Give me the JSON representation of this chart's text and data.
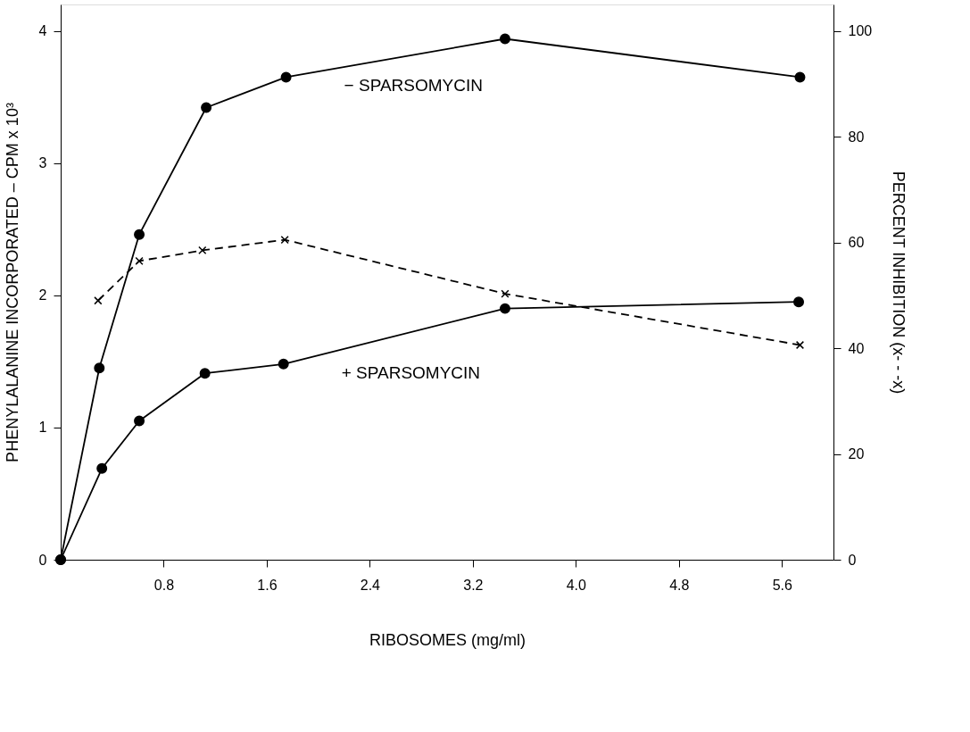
{
  "chart_data": {
    "type": "line",
    "xlabel": "RIBOSOMES  (mg/ml)",
    "ylabel": "PHENYLALANINE  INCORPORATED – CPM x 10³",
    "y2label": "PERCENT  INHIBITION  (x- - -x)",
    "xlim": [
      0,
      6
    ],
    "xticks": [
      0.8,
      1.6,
      2.4,
      3.2,
      {
        "value": 4.0,
        "label": "4.0"
      },
      4.8,
      5.6
    ],
    "ylim": [
      0,
      4.2
    ],
    "yticks": [
      0,
      1,
      2,
      3,
      4
    ],
    "y2lim": [
      0,
      105
    ],
    "y2ticks": [
      0,
      20,
      40,
      60,
      80,
      100
    ],
    "grid": false,
    "series": [
      {
        "name": "− SPARSOMYCIN",
        "color": "#000000",
        "marker": "circle",
        "line_style": "solid",
        "x": [
          0,
          0.3,
          0.61,
          1.13,
          1.75,
          3.45,
          5.74
        ],
        "values": [
          0,
          1.45,
          2.46,
          3.42,
          3.65,
          3.94,
          3.65
        ]
      },
      {
        "name": "+ SPARSOMYCIN",
        "color": "#000000",
        "marker": "circle",
        "line_style": "solid",
        "x": [
          0,
          0.32,
          0.61,
          1.12,
          1.73,
          3.45,
          5.73
        ],
        "values": [
          0,
          0.69,
          1.05,
          1.41,
          1.48,
          1.9,
          1.95
        ]
      },
      {
        "color": "#000000",
        "marker": "cross",
        "line_style": "dashed",
        "axis": "y2",
        "x": [
          0.29,
          0.61,
          1.1,
          1.74,
          3.45,
          5.74
        ],
        "values": [
          49,
          56.5,
          58.5,
          60.5,
          50.3,
          40.6
        ]
      }
    ]
  }
}
